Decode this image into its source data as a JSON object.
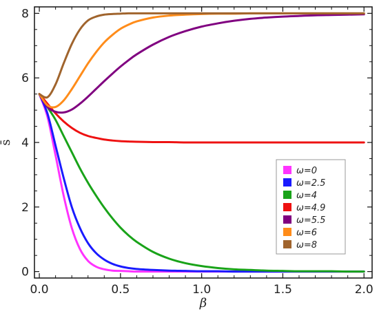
{
  "chart_data": {
    "type": "line",
    "xlabel": "β",
    "ylabel": "s̄",
    "xlim": [
      -0.03,
      2.05
    ],
    "ylim": [
      -0.2,
      8.2
    ],
    "xticks": [
      0.0,
      0.5,
      1.0,
      1.5,
      2.0
    ],
    "xtick_labels": [
      "0.0",
      "0.5",
      "1.0",
      "1.5",
      "2.0"
    ],
    "yticks": [
      0,
      2,
      4,
      6,
      8
    ],
    "ytick_labels": [
      "0",
      "2",
      "4",
      "6",
      "8"
    ],
    "legend_position": "right",
    "x": [
      0.0,
      0.05,
      0.1,
      0.15,
      0.2,
      0.25,
      0.3,
      0.35,
      0.4,
      0.45,
      0.5,
      0.55,
      0.6,
      0.7,
      0.8,
      0.9,
      1.0,
      1.1,
      1.2,
      1.3,
      1.4,
      1.5,
      1.6,
      1.7,
      1.8,
      1.9,
      2.0
    ],
    "series": [
      {
        "name": "ω=0",
        "color": "#ff33ff",
        "values": [
          5.5,
          4.8,
          3.6,
          2.35,
          1.35,
          0.7,
          0.33,
          0.15,
          0.07,
          0.03,
          0.02,
          0.01,
          0.0,
          0.0,
          0.0,
          0.0,
          0.0,
          0.0,
          0.0,
          0.0,
          0.0,
          0.0,
          0.0,
          0.0,
          0.0,
          0.0,
          0.0
        ]
      },
      {
        "name": "ω=2.5",
        "color": "#1a1aff",
        "values": [
          5.5,
          4.9,
          3.9,
          2.9,
          2.0,
          1.35,
          0.88,
          0.57,
          0.37,
          0.24,
          0.16,
          0.11,
          0.08,
          0.05,
          0.03,
          0.02,
          0.01,
          0.01,
          0.0,
          0.0,
          0.0,
          0.0,
          0.0,
          0.0,
          0.0,
          0.0,
          0.0
        ]
      },
      {
        "name": "ω=4",
        "color": "#19a319",
        "values": [
          5.5,
          5.1,
          4.7,
          4.2,
          3.7,
          3.2,
          2.75,
          2.35,
          1.98,
          1.65,
          1.36,
          1.12,
          0.92,
          0.61,
          0.4,
          0.26,
          0.17,
          0.11,
          0.07,
          0.05,
          0.03,
          0.02,
          0.01,
          0.01,
          0.01,
          0.0,
          0.0
        ]
      },
      {
        "name": "ω=4.9",
        "color": "#ee1111",
        "values": [
          5.5,
          5.2,
          4.9,
          4.65,
          4.45,
          4.3,
          4.2,
          4.14,
          4.09,
          4.06,
          4.04,
          4.03,
          4.02,
          4.01,
          4.01,
          4.0,
          4.0,
          4.0,
          4.0,
          4.0,
          4.0,
          4.0,
          4.0,
          4.0,
          4.0,
          4.0,
          4.0
        ]
      },
      {
        "name": "ω=5.5",
        "color": "#800080",
        "values": [
          5.5,
          5.1,
          4.95,
          4.93,
          5.02,
          5.2,
          5.42,
          5.66,
          5.9,
          6.13,
          6.35,
          6.55,
          6.73,
          7.03,
          7.27,
          7.45,
          7.59,
          7.69,
          7.77,
          7.83,
          7.87,
          7.9,
          7.92,
          7.94,
          7.95,
          7.96,
          7.97
        ]
      },
      {
        "name": "ω=6",
        "color": "#ff8c1a",
        "values": [
          5.5,
          5.15,
          5.1,
          5.3,
          5.65,
          6.05,
          6.45,
          6.8,
          7.1,
          7.33,
          7.52,
          7.65,
          7.75,
          7.87,
          7.93,
          7.96,
          7.98,
          7.99,
          7.99,
          8.0,
          8.0,
          8.0,
          8.0,
          8.0,
          8.0,
          8.0,
          8.0
        ]
      },
      {
        "name": "ω=8",
        "color": "#a0642d",
        "values": [
          5.5,
          5.4,
          5.8,
          6.45,
          7.05,
          7.5,
          7.78,
          7.9,
          7.96,
          7.98,
          7.99,
          8.0,
          8.0,
          8.0,
          8.0,
          8.0,
          8.0,
          8.0,
          8.0,
          8.0,
          8.0,
          8.0,
          8.0,
          8.0,
          8.0,
          8.0,
          8.0
        ]
      }
    ]
  }
}
